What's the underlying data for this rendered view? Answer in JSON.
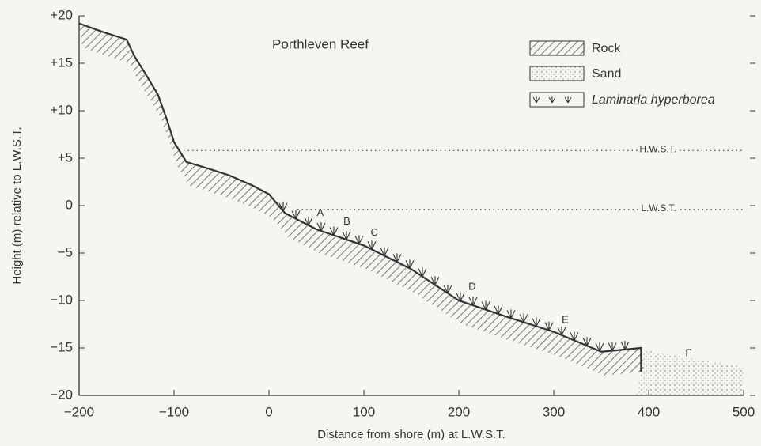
{
  "chart_data": {
    "type": "line",
    "title": "Porthleven Reef",
    "x_label": "Distance from shore (m) at L.W.S.T.",
    "y_label": "Height (m) relative to L.W.S.T.",
    "legend": [
      "Rock",
      "Sand",
      "Laminaria hyperborea"
    ],
    "x": [
      -200,
      -175,
      -150,
      -142,
      -129,
      -117,
      -108,
      -100,
      -87,
      -67,
      -42,
      -17,
      0,
      17,
      50,
      100,
      150,
      200,
      250,
      300,
      350,
      392,
      392
    ],
    "values": [
      19.2,
      18.3,
      17.5,
      15.8,
      13.7,
      11.7,
      9.2,
      6.7,
      4.6,
      4,
      3.2,
      2.1,
      1.2,
      -0.8,
      -2.5,
      -4.2,
      -6.7,
      -10,
      -11.7,
      -13.3,
      -15.4,
      -15,
      -17.5
    ],
    "color": "#333333",
    "reference_lines": [
      {
        "label": "H.W.S.T.",
        "y": 5.8,
        "x_start": -90
      },
      {
        "label": "L.W.S.T.",
        "y": -0.4,
        "x_start": 30
      }
    ],
    "point_labels": [
      {
        "label": "A",
        "x": 54,
        "y": -0.8
      },
      {
        "label": "B",
        "x": 82,
        "y": -1.7
      },
      {
        "label": "C",
        "x": 111,
        "y": -2.9
      },
      {
        "label": "D",
        "x": 214,
        "y": -8.6
      },
      {
        "label": "E",
        "x": 312,
        "y": -12.1
      },
      {
        "label": "F",
        "x": 442,
        "y": -15.6
      }
    ],
    "xlim": [
      -200,
      500
    ],
    "ylim": [
      -20,
      20
    ],
    "xticks": [
      {
        "value": -200,
        "label": "−200"
      },
      {
        "value": -100,
        "label": "−100"
      },
      0,
      100,
      200,
      300,
      400,
      500
    ],
    "yticks": [
      {
        "value": 20,
        "label": "+20"
      },
      {
        "value": 15,
        "label": "+15"
      },
      {
        "value": 10,
        "label": "+10"
      },
      {
        "value": 5,
        "label": "+5"
      },
      0,
      {
        "value": -5,
        "label": "−5"
      },
      {
        "value": -10,
        "label": "−10"
      },
      {
        "value": -15,
        "label": "−15"
      },
      {
        "value": -20,
        "label": "−20"
      }
    ]
  }
}
